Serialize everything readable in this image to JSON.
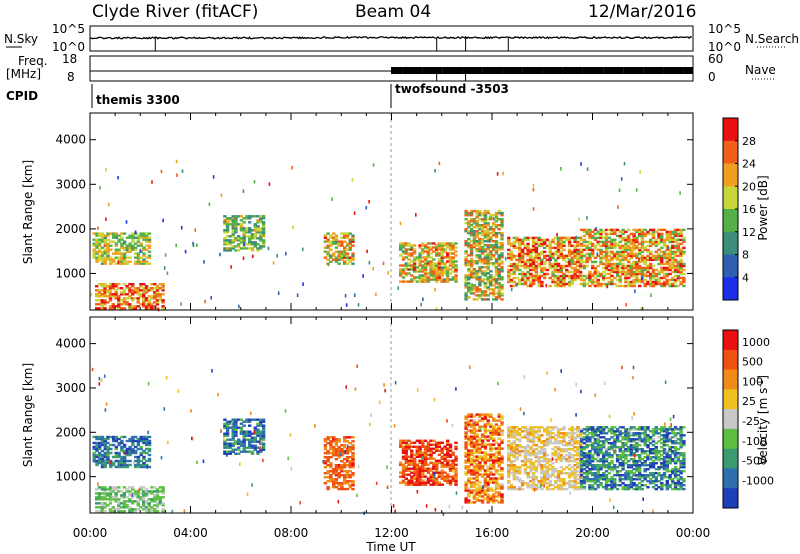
{
  "header": {
    "station": "Clyde River (fitACF)",
    "beam": "Beam 04",
    "date": "12/Mar/2016"
  },
  "strip": {
    "nsky_label": "N.Sky",
    "nsky_ticks": [
      "10^5",
      "10^0"
    ],
    "nsearch_label": "N.Search",
    "nsearch_ticks": [
      "10^5",
      "10^0"
    ],
    "freq_label": "Freq.",
    "freq_unit": "[MHz]",
    "freq_ticks": [
      "18",
      "8"
    ],
    "nave_label": "Nave",
    "nave_ticks": [
      "60",
      "0"
    ],
    "cpid_label": "CPID",
    "cpid_entries": [
      {
        "name": "themis 3300",
        "start_hour": 0
      },
      {
        "name": "twofsound -3503",
        "start_hour": 12
      }
    ]
  },
  "chart_data": [
    {
      "type": "heatmap",
      "name": "power",
      "xlabel": "",
      "ylabel": "Slant Range [km]",
      "x_ticks": [
        "00:00",
        "04:00",
        "08:00",
        "12:00",
        "16:00",
        "20:00",
        "00:00"
      ],
      "xlim_hours": [
        0,
        24
      ],
      "y_ticks": [
        1000,
        2000,
        3000,
        4000
      ],
      "ylim": [
        180,
        4600
      ],
      "colorbar": {
        "label": "Power [dB]",
        "tick_labels": [
          "4",
          "8",
          "12",
          "16",
          "20",
          "24",
          "28"
        ],
        "colors": [
          "#1a2fe6",
          "#2f5fb0",
          "#3c8d7a",
          "#56b04a",
          "#c8d63a",
          "#f0a020",
          "#f06018",
          "#e81010"
        ]
      },
      "regions": [
        {
          "t": [
            0.1,
            2.4
          ],
          "r": [
            1200,
            1900
          ],
          "level": [
            0.35,
            0.75
          ]
        },
        {
          "t": [
            0.2,
            2.9
          ],
          "r": [
            200,
            750
          ],
          "level": [
            0.5,
            1.0
          ]
        },
        {
          "t": [
            5.3,
            6.9
          ],
          "r": [
            1500,
            2300
          ],
          "level": [
            0.25,
            0.65
          ]
        },
        {
          "t": [
            9.3,
            10.4
          ],
          "r": [
            1200,
            1900
          ],
          "level": [
            0.35,
            0.9
          ]
        },
        {
          "t": [
            12.3,
            14.6
          ],
          "r": [
            800,
            1700
          ],
          "level": [
            0.35,
            0.9
          ]
        },
        {
          "t": [
            14.9,
            16.4
          ],
          "r": [
            400,
            2400
          ],
          "level": [
            0.3,
            0.85
          ]
        },
        {
          "t": [
            16.6,
            19.5
          ],
          "r": [
            700,
            1800
          ],
          "level": [
            0.45,
            1.0
          ]
        },
        {
          "t": [
            19.5,
            23.6
          ],
          "r": [
            700,
            2000
          ],
          "level": [
            0.4,
            0.95
          ]
        }
      ]
    },
    {
      "type": "heatmap",
      "name": "velocity",
      "xlabel": "Time UT",
      "ylabel": "Slant Range [km]",
      "x_ticks": [
        "00:00",
        "04:00",
        "08:00",
        "12:00",
        "16:00",
        "20:00",
        "00:00"
      ],
      "xlim_hours": [
        0,
        24
      ],
      "y_ticks": [
        1000,
        2000,
        3000,
        4000
      ],
      "ylim": [
        180,
        4600
      ],
      "colorbar": {
        "label": "Velocity [m s^-1]",
        "tick_labels": [
          "1000",
          "500",
          "100",
          "25",
          "-25",
          "-100",
          "-500",
          "-1000"
        ],
        "colors": [
          "#1f3fb8",
          "#2f6fb0",
          "#3c9a70",
          "#5cc040",
          "#c8c8c8",
          "#f0c020",
          "#f08a18",
          "#f05010",
          "#e81010"
        ]
      },
      "regions": [
        {
          "t": [
            0.1,
            2.4
          ],
          "r": [
            1200,
            1900
          ],
          "level": [
            0.05,
            0.35
          ]
        },
        {
          "t": [
            0.2,
            2.9
          ],
          "r": [
            200,
            750
          ],
          "level": [
            0.3,
            0.5
          ]
        },
        {
          "t": [
            5.3,
            6.9
          ],
          "r": [
            1500,
            2300
          ],
          "level": [
            0.05,
            0.35
          ]
        },
        {
          "t": [
            9.3,
            10.4
          ],
          "r": [
            700,
            1900
          ],
          "level": [
            0.7,
            0.9
          ]
        },
        {
          "t": [
            12.3,
            14.6
          ],
          "r": [
            800,
            1800
          ],
          "level": [
            0.7,
            1.0
          ]
        },
        {
          "t": [
            14.9,
            16.4
          ],
          "r": [
            400,
            2400
          ],
          "level": [
            0.55,
            0.95
          ]
        },
        {
          "t": [
            16.6,
            19.5
          ],
          "r": [
            700,
            2100
          ],
          "level": [
            0.45,
            0.7
          ]
        },
        {
          "t": [
            19.5,
            23.6
          ],
          "r": [
            700,
            2100
          ],
          "level": [
            0.0,
            0.45
          ]
        }
      ]
    }
  ]
}
